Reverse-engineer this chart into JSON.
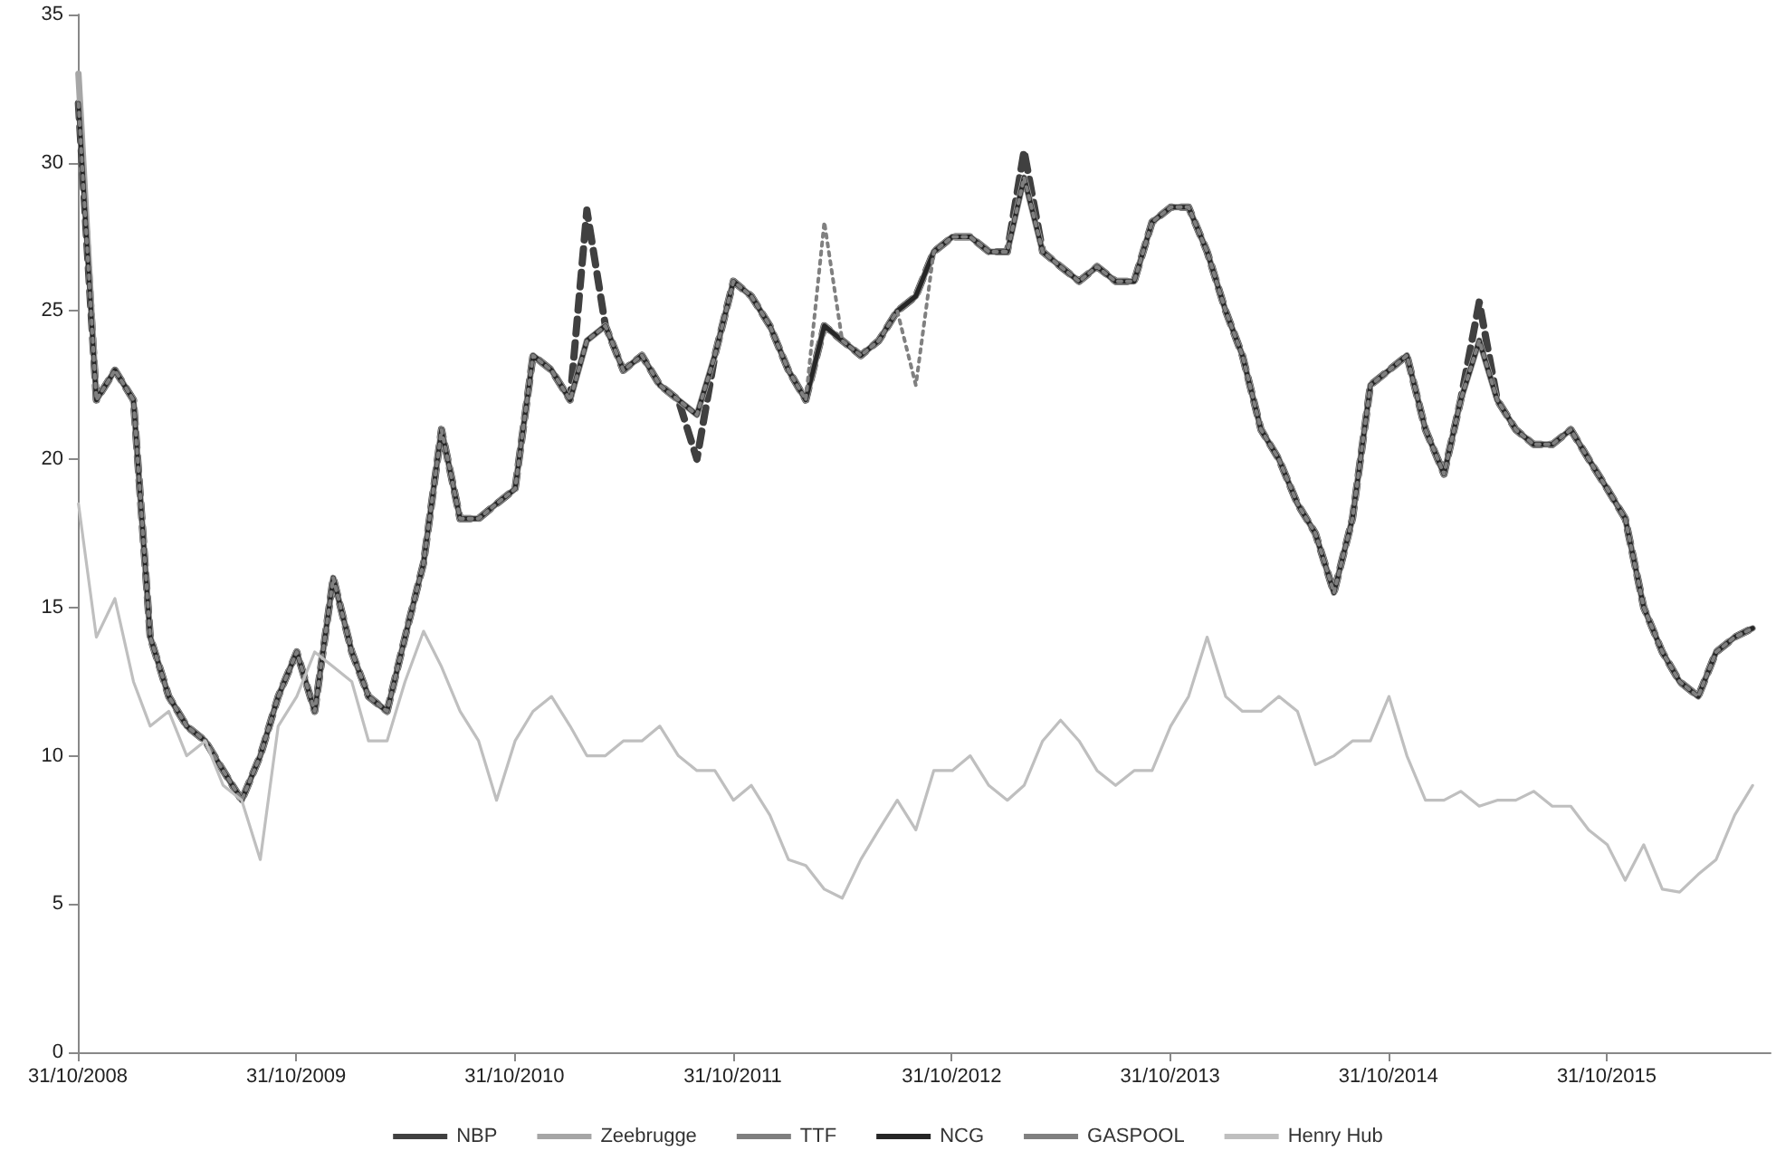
{
  "chart_data": {
    "type": "line",
    "x": [
      "2008-11",
      "2008-12",
      "2009-01",
      "2009-02",
      "2009-03",
      "2009-04",
      "2009-05",
      "2009-06",
      "2009-07",
      "2009-08",
      "2009-09",
      "2009-10",
      "2009-11",
      "2009-12",
      "2010-01",
      "2010-02",
      "2010-03",
      "2010-04",
      "2010-05",
      "2010-06",
      "2010-07",
      "2010-08",
      "2010-09",
      "2010-10",
      "2010-11",
      "2010-12",
      "2011-01",
      "2011-02",
      "2011-03",
      "2011-04",
      "2011-05",
      "2011-06",
      "2011-07",
      "2011-08",
      "2011-09",
      "2011-10",
      "2011-11",
      "2011-12",
      "2012-01",
      "2012-02",
      "2012-03",
      "2012-04",
      "2012-05",
      "2012-06",
      "2012-07",
      "2012-08",
      "2012-09",
      "2012-10",
      "2012-11",
      "2012-12",
      "2013-01",
      "2013-02",
      "2013-03",
      "2013-04",
      "2013-05",
      "2013-06",
      "2013-07",
      "2013-08",
      "2013-09",
      "2013-10",
      "2013-11",
      "2013-12",
      "2014-01",
      "2014-02",
      "2014-03",
      "2014-04",
      "2014-05",
      "2014-06",
      "2014-07",
      "2014-08",
      "2014-09",
      "2014-10",
      "2014-11",
      "2014-12",
      "2015-01",
      "2015-02",
      "2015-03",
      "2015-04",
      "2015-05",
      "2015-06",
      "2015-07",
      "2015-08",
      "2015-09",
      "2015-10",
      "2015-11",
      "2015-12",
      "2016-01",
      "2016-02",
      "2016-03",
      "2016-04",
      "2016-05",
      "2016-06",
      "2016-07"
    ],
    "series": [
      {
        "name": "NBP",
        "color": "#404040",
        "line_style": "dashed",
        "values": [
          32,
          22,
          23,
          22,
          14,
          12,
          11,
          10.5,
          9.5,
          8.5,
          10,
          12,
          13.5,
          11.5,
          16,
          13.5,
          12,
          11.5,
          14,
          16.5,
          21,
          18,
          18,
          18.5,
          19,
          23.5,
          23,
          22,
          28.4,
          24.5,
          23,
          23.5,
          22.5,
          22,
          20,
          23.5,
          26,
          25.5,
          24.5,
          23,
          22,
          24.5,
          24,
          23.5,
          24,
          25,
          25.5,
          27,
          27.5,
          27.5,
          27,
          27,
          30.4,
          27,
          26.5,
          26,
          26.5,
          26,
          26,
          28,
          28.5,
          28.5,
          27,
          25,
          23.5,
          21,
          20,
          18.5,
          17.5,
          15.5,
          18,
          22.5,
          23,
          23.5,
          21,
          19.5,
          22,
          25.3,
          22,
          21,
          20.5,
          20.5,
          21,
          20,
          19,
          18,
          15,
          13.5,
          12.5,
          12,
          13.5,
          14,
          14.3
        ]
      },
      {
        "name": "Zeebrugge",
        "color": "#a6a6a6",
        "line_style": "solid",
        "values": [
          33,
          22,
          23,
          22,
          14,
          12,
          11,
          10.5,
          9.5,
          8.5,
          10,
          12,
          13.5,
          11.5,
          16,
          13.5,
          12,
          11.5,
          14,
          16.5,
          21,
          18,
          18,
          18.5,
          19,
          23.5,
          23,
          22,
          24,
          24.5,
          23,
          23.5,
          22.5,
          22,
          21.5,
          23.5,
          26,
          25.5,
          24.5,
          23,
          22,
          24.5,
          24,
          23.5,
          24,
          25,
          25.5,
          27,
          27.5,
          27.5,
          27,
          27,
          29.5,
          27,
          26.5,
          26,
          26.5,
          26,
          26,
          28,
          28.5,
          28.5,
          27,
          25,
          23.5,
          21,
          20,
          18.5,
          17.5,
          15.5,
          18,
          22.5,
          23,
          23.5,
          21,
          19.5,
          22,
          24,
          22,
          21,
          20.5,
          20.5,
          21,
          20,
          19,
          18,
          15,
          13.5,
          12.5,
          12,
          13.5,
          14,
          14.3
        ]
      },
      {
        "name": "TTF",
        "color": "#7f7f7f",
        "line_style": "solid",
        "values": [
          32,
          22,
          23,
          22,
          14,
          12,
          11,
          10.5,
          9.5,
          8.5,
          10,
          12,
          13.5,
          11.5,
          16,
          13.5,
          12,
          11.5,
          14,
          16.5,
          21,
          18,
          18,
          18.5,
          19,
          23.5,
          23,
          22,
          24,
          24.5,
          23,
          23.5,
          22.5,
          22,
          21.5,
          23.5,
          26,
          25.5,
          24.5,
          23,
          22,
          24.5,
          24,
          23.5,
          24,
          25,
          25.5,
          27,
          27.5,
          27.5,
          27,
          27,
          29.5,
          27,
          26.5,
          26,
          26.5,
          26,
          26,
          28,
          28.5,
          28.5,
          27,
          25,
          23.5,
          21,
          20,
          18.5,
          17.5,
          15.5,
          18,
          22.5,
          23,
          23.5,
          21,
          19.5,
          22,
          24,
          22,
          21,
          20.5,
          20.5,
          21,
          20,
          19,
          18,
          15,
          13.5,
          12.5,
          12,
          13.5,
          14,
          14.3
        ]
      },
      {
        "name": "NCG",
        "color": "#262626",
        "line_style": "solid",
        "values": [
          32,
          22,
          23,
          22,
          14,
          12,
          11,
          10.5,
          9.5,
          8.5,
          10,
          12,
          13.5,
          11.5,
          16,
          13.5,
          12,
          11.5,
          14,
          16.5,
          21,
          18,
          18,
          18.5,
          19,
          23.5,
          23,
          22,
          24,
          24.5,
          23,
          23.5,
          22.5,
          22,
          21.5,
          23.5,
          26,
          25.5,
          24.5,
          23,
          22,
          24.5,
          24,
          23.5,
          24,
          25,
          25.5,
          27,
          27.5,
          27.5,
          27,
          27,
          29.5,
          27,
          26.5,
          26,
          26.5,
          26,
          26,
          28,
          28.5,
          28.5,
          27,
          25,
          23.5,
          21,
          20,
          18.5,
          17.5,
          15.5,
          18,
          22.5,
          23,
          23.5,
          21,
          19.5,
          22,
          24,
          22,
          21,
          20.5,
          20.5,
          21,
          20,
          19,
          18,
          15,
          13.5,
          12.5,
          12,
          13.5,
          14,
          14.3
        ]
      },
      {
        "name": "GASPOOL",
        "color": "#808080",
        "line_style": "dotted",
        "values": [
          32,
          22,
          23,
          22,
          14,
          12,
          11,
          10.5,
          9.5,
          8.5,
          10,
          12,
          13.5,
          11.5,
          16,
          13.5,
          12,
          11.5,
          14,
          16.5,
          21,
          18,
          18,
          18.5,
          19,
          23.5,
          23,
          22,
          24,
          24.5,
          23,
          23.5,
          22.5,
          22,
          21.5,
          23.5,
          26,
          25.5,
          24.5,
          23,
          22,
          28,
          24,
          23.5,
          24,
          25,
          22.5,
          27,
          27.5,
          27.5,
          27,
          27,
          29.5,
          27,
          26.5,
          26,
          26.5,
          26,
          26,
          28,
          28.5,
          28.5,
          27,
          25,
          23.5,
          21,
          20,
          18.5,
          17.5,
          15.5,
          18,
          22.5,
          23,
          23.5,
          21,
          19.5,
          22,
          24,
          22,
          21,
          20.5,
          20.5,
          21,
          20,
          19,
          18,
          15,
          13.5,
          12.5,
          12,
          13.5,
          14,
          14.3
        ]
      },
      {
        "name": "Henry Hub",
        "color": "#bfbfbf",
        "line_style": "solid",
        "values": [
          18.5,
          14,
          15.3,
          12.5,
          11,
          11.5,
          10,
          10.5,
          9,
          8.5,
          6.5,
          11,
          12,
          13.5,
          13,
          12.5,
          10.5,
          10.5,
          12.5,
          14.2,
          13,
          11.5,
          10.5,
          8.5,
          10.5,
          11.5,
          12,
          11,
          10,
          10,
          10.5,
          10.5,
          11,
          10,
          9.5,
          9.5,
          8.5,
          9,
          8,
          6.5,
          6.3,
          5.5,
          5.2,
          6.5,
          7.5,
          8.5,
          7.5,
          9.5,
          9.5,
          10,
          9,
          8.5,
          9,
          10.5,
          11.2,
          10.5,
          9.5,
          9,
          9.5,
          9.5,
          11,
          12,
          14,
          12,
          11.5,
          11.5,
          12,
          11.5,
          9.7,
          10,
          10.5,
          10.5,
          12,
          10,
          8.5,
          8.5,
          8.8,
          8.3,
          8.5,
          8.5,
          8.8,
          8.3,
          8.3,
          7.5,
          7,
          5.8,
          7,
          5.5,
          5.4,
          6,
          6.5,
          8,
          9
        ]
      }
    ],
    "xlim": [
      "2008-10-31",
      "2016-07-31"
    ],
    "xticks": [
      {
        "value": "2008-10-31",
        "label": "31/10/2008"
      },
      {
        "value": "2009-10-31",
        "label": "31/10/2009"
      },
      {
        "value": "2010-10-31",
        "label": "31/10/2010"
      },
      {
        "value": "2011-10-31",
        "label": "31/10/2011"
      },
      {
        "value": "2012-10-31",
        "label": "31/10/2012"
      },
      {
        "value": "2013-10-31",
        "label": "31/10/2013"
      },
      {
        "value": "2014-10-31",
        "label": "31/10/2014"
      },
      {
        "value": "2015-10-31",
        "label": "31/10/2015"
      }
    ],
    "ylim": [
      0,
      35
    ],
    "yticks": [
      0,
      5,
      10,
      15,
      20,
      25,
      30,
      35
    ],
    "grid": false,
    "legend": "bottom",
    "marker": "none"
  }
}
